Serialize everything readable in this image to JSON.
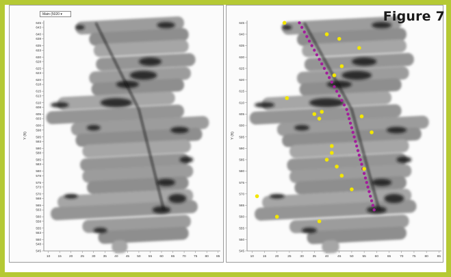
{
  "figure_label": "Figure 7",
  "dropdown": {
    "label": "Main (5020 ▾"
  },
  "y_axis": {
    "label": "Y (ft)",
    "ticks": [
      "545",
      "548",
      "550",
      "553",
      "555",
      "558",
      "560",
      "563",
      "565",
      "568",
      "570",
      "573",
      "575",
      "578",
      "580",
      "583",
      "585",
      "588",
      "590",
      "593",
      "595",
      "598",
      "600",
      "603",
      "605",
      "608",
      "610",
      "613",
      "615",
      "618",
      "620",
      "623",
      "625",
      "628",
      "630",
      "633",
      "635",
      "638",
      "640",
      "643",
      "645"
    ],
    "right_visible_ticks": [
      "545",
      "550",
      "555",
      "560",
      "565",
      "570",
      "575",
      "580",
      "585",
      "590",
      "595",
      "600",
      "605",
      "610",
      "615",
      "620",
      "625",
      "630",
      "635",
      "640",
      "645"
    ]
  },
  "x_axis": {
    "ticks": [
      "10",
      "15",
      "20",
      "25",
      "30",
      "35",
      "40",
      "45",
      "50",
      "55",
      "60",
      "65",
      "70",
      "75",
      "80",
      "85"
    ],
    "range": [
      8,
      86
    ]
  },
  "y_range": [
    545,
    646
  ],
  "colors": {
    "frame": "#b5c934",
    "trend": "#a21f9b",
    "samples": "#f2e600"
  },
  "strips": [
    {
      "x0": 22,
      "x1": 70,
      "y": 644
    },
    {
      "x0": 28,
      "x1": 72,
      "y": 639
    },
    {
      "x0": 30,
      "x1": 72,
      "y": 634
    },
    {
      "x0": 31,
      "x1": 75,
      "y": 628
    },
    {
      "x0": 28,
      "x1": 73,
      "y": 622
    },
    {
      "x0": 29,
      "x1": 70,
      "y": 617
    },
    {
      "x0": 14,
      "x1": 66,
      "y": 611
    },
    {
      "x0": 9,
      "x1": 70,
      "y": 605
    },
    {
      "x0": 20,
      "x1": 81,
      "y": 600
    },
    {
      "x0": 22,
      "x1": 78,
      "y": 595
    },
    {
      "x0": 25,
      "x1": 73,
      "y": 590
    },
    {
      "x0": 24,
      "x1": 72,
      "y": 584
    },
    {
      "x0": 25,
      "x1": 74,
      "y": 579
    },
    {
      "x0": 27,
      "x1": 72,
      "y": 574
    },
    {
      "x0": 14,
      "x1": 74,
      "y": 568
    },
    {
      "x0": 11,
      "x1": 76,
      "y": 563
    },
    {
      "x0": 25,
      "x1": 73,
      "y": 557
    },
    {
      "x0": 32,
      "x1": 72,
      "y": 552
    },
    {
      "x0": 38,
      "x1": 45,
      "y": 547
    }
  ],
  "dark_blobs": [
    {
      "x": 62,
      "y": 644,
      "w": 4,
      "h": 1.4
    },
    {
      "x": 24,
      "y": 643,
      "w": 2,
      "h": 1
    },
    {
      "x": 55,
      "y": 628,
      "w": 5,
      "h": 1.8
    },
    {
      "x": 52,
      "y": 622,
      "w": 6,
      "h": 2
    },
    {
      "x": 45,
      "y": 618,
      "w": 5,
      "h": 1.6
    },
    {
      "x": 15,
      "y": 609,
      "w": 4,
      "h": 1.2
    },
    {
      "x": 40,
      "y": 610,
      "w": 7,
      "h": 2
    },
    {
      "x": 30,
      "y": 599,
      "w": 3,
      "h": 1.2
    },
    {
      "x": 68,
      "y": 598,
      "w": 4,
      "h": 1.4
    },
    {
      "x": 71,
      "y": 585,
      "w": 3,
      "h": 1.4
    },
    {
      "x": 62,
      "y": 575,
      "w": 4,
      "h": 1.6
    },
    {
      "x": 67,
      "y": 568,
      "w": 4,
      "h": 2
    },
    {
      "x": 20,
      "y": 569,
      "w": 3,
      "h": 1
    },
    {
      "x": 60,
      "y": 563,
      "w": 4,
      "h": 1.6
    },
    {
      "x": 33,
      "y": 554,
      "w": 3,
      "h": 1.2
    }
  ],
  "trend_points": [
    [
      29,
      645
    ],
    [
      30,
      643
    ],
    [
      31,
      641
    ],
    [
      32,
      639
    ],
    [
      33,
      637
    ],
    [
      34,
      635
    ],
    [
      35,
      633
    ],
    [
      36,
      631
    ],
    [
      37,
      629
    ],
    [
      38,
      627
    ],
    [
      39,
      625
    ],
    [
      40,
      623
    ],
    [
      41,
      621
    ],
    [
      42,
      619
    ],
    [
      43,
      617
    ],
    [
      44,
      615
    ],
    [
      45,
      613
    ],
    [
      46,
      611
    ],
    [
      47,
      609
    ],
    [
      48,
      607
    ],
    [
      48.5,
      605
    ],
    [
      49,
      603
    ],
    [
      49.5,
      601
    ],
    [
      50,
      599
    ],
    [
      50.5,
      597
    ],
    [
      51,
      595
    ],
    [
      51.5,
      593
    ],
    [
      52,
      591
    ],
    [
      52.5,
      589
    ],
    [
      53,
      587
    ],
    [
      53.5,
      585
    ],
    [
      54,
      583
    ],
    [
      54.5,
      581
    ],
    [
      55,
      579
    ],
    [
      55.5,
      577
    ],
    [
      56,
      575
    ],
    [
      56.5,
      573
    ],
    [
      57,
      571
    ],
    [
      57.5,
      569
    ],
    [
      58,
      567
    ],
    [
      58.5,
      565
    ],
    [
      59,
      563
    ]
  ],
  "sample_points": [
    [
      23,
      645
    ],
    [
      40,
      640
    ],
    [
      45,
      638
    ],
    [
      53,
      634
    ],
    [
      46,
      626
    ],
    [
      43,
      622
    ],
    [
      24,
      612
    ],
    [
      38,
      606
    ],
    [
      35,
      605
    ],
    [
      37,
      603
    ],
    [
      54,
      604
    ],
    [
      58,
      597
    ],
    [
      42,
      591
    ],
    [
      42,
      588
    ],
    [
      40,
      585
    ],
    [
      44,
      582
    ],
    [
      55,
      581
    ],
    [
      46,
      578
    ],
    [
      12,
      569
    ],
    [
      20,
      560
    ],
    [
      37,
      558
    ],
    [
      50,
      572
    ]
  ]
}
